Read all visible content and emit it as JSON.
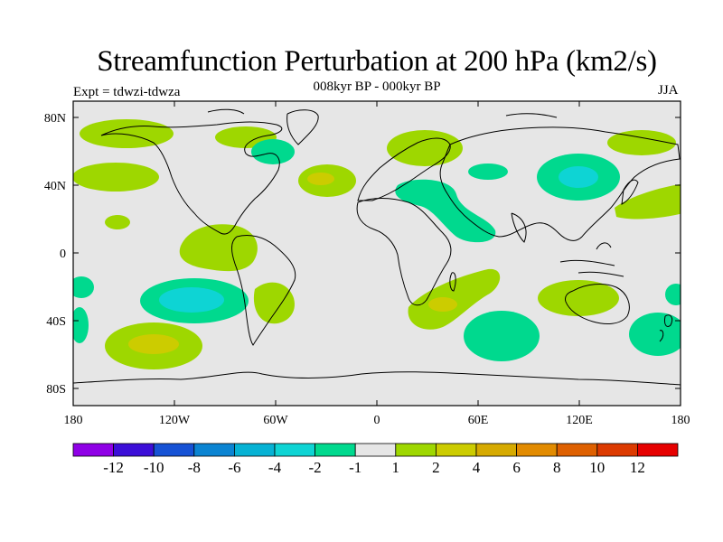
{
  "title": "Streamfunction Perturbation at 200 hPa (km2/s)",
  "subtitle": "008kyr BP - 000kyr BP",
  "left_label": "Expt = tdwzi-tdwza",
  "right_label": "JJA",
  "axes": {
    "x_ticks": [
      "180",
      "120W",
      "60W",
      "0",
      "60E",
      "120E",
      "180"
    ],
    "y_ticks": [
      "80N",
      "40N",
      "0",
      "40S",
      "80S"
    ]
  },
  "colorbar": {
    "colors": [
      "#8f00e6",
      "#3c0ed8",
      "#1652d5",
      "#0b84d2",
      "#06b2d4",
      "#0ed4d4",
      "#00d98e",
      "#e6e6e6",
      "#9ed700",
      "#cccc00",
      "#d6aa00",
      "#e28b00",
      "#de6000",
      "#dc3a00",
      "#e60000"
    ],
    "labels": [
      "-12",
      "-10",
      "-8",
      "-6",
      "-4",
      "-2",
      "-1",
      "1",
      "2",
      "4",
      "6",
      "8",
      "10",
      "12"
    ]
  },
  "map_colors": {
    "ocean_background": "#e6e6e6",
    "coast": "#000000"
  }
}
